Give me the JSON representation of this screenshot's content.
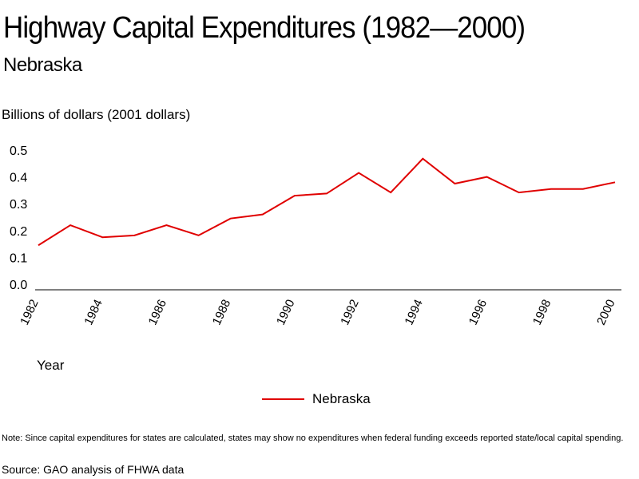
{
  "chart_data": {
    "type": "line",
    "title": "Highway Capital Expenditures (1982—2000)",
    "subtitle": "Nebraska",
    "ylabel": "Billions of dollars (2001 dollars)",
    "xlabel": "Year",
    "ylim": [
      0,
      0.5
    ],
    "yticks": [
      "0.0",
      "0.1",
      "0.2",
      "0.3",
      "0.4",
      "0.5"
    ],
    "x": [
      1982,
      1983,
      1984,
      1985,
      1986,
      1987,
      1988,
      1989,
      1990,
      1991,
      1992,
      1993,
      1994,
      1995,
      1996,
      1997,
      1998,
      1999,
      2000
    ],
    "xticks": [
      "1982",
      "1984",
      "1986",
      "1988",
      "1990",
      "1992",
      "1994",
      "1996",
      "1998",
      "2000"
    ],
    "series": [
      {
        "name": "Nebraska",
        "color": "#e00000",
        "values": [
          0.145,
          0.22,
          0.175,
          0.182,
          0.22,
          0.182,
          0.245,
          0.26,
          0.33,
          0.338,
          0.415,
          0.342,
          0.468,
          0.375,
          0.4,
          0.342,
          0.355,
          0.355,
          0.38
        ]
      }
    ],
    "grid": false,
    "legend": "bottom-center"
  },
  "note": "Note: Since capital expenditures for states are calculated, states may show no expenditures when federal funding exceeds reported state/local capital spending.",
  "source": "Source: GAO analysis of FHWA data"
}
